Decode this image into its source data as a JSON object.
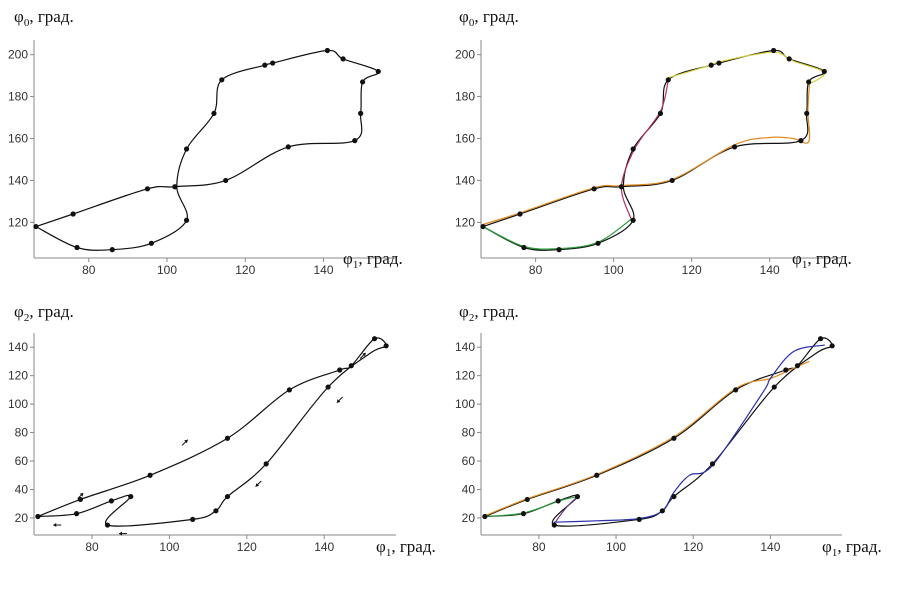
{
  "chart_data": [
    {
      "type": "line",
      "panel": "top-left",
      "ylabel": {
        "base": "φ",
        "sub": "0",
        "rest": ", град."
      },
      "xlabel": {
        "base": "φ",
        "sub": "1",
        "rest": ", град."
      },
      "xlim": [
        66,
        157
      ],
      "ylim": [
        103,
        207
      ],
      "xticks": [
        80,
        100,
        120,
        140
      ],
      "yticks": [
        120,
        140,
        160,
        180,
        200
      ],
      "series": [
        {
          "color": "#111111",
          "points": [
            [
              66.5,
              118
            ],
            [
              76,
              124
            ],
            [
              95,
              136
            ],
            [
              102,
              137
            ],
            [
              115,
              140
            ],
            [
              131,
              156
            ],
            [
              148,
              159
            ],
            [
              149.5,
              172
            ],
            [
              150,
              187
            ],
            [
              154,
              192
            ],
            [
              145,
              198
            ],
            [
              141,
              202
            ],
            [
              127,
              196
            ],
            [
              125,
              195
            ],
            [
              114,
              188
            ],
            [
              112,
              172
            ],
            [
              105,
              155
            ],
            [
              102.5,
              137
            ],
            [
              105,
              121
            ],
            [
              96,
              110
            ],
            [
              86,
              107
            ],
            [
              77,
              108
            ],
            [
              66.5,
              118
            ]
          ]
        }
      ],
      "markers": [
        [
          66.5,
          118
        ],
        [
          76,
          124
        ],
        [
          95,
          136
        ],
        [
          102,
          137
        ],
        [
          115,
          140
        ],
        [
          131,
          156
        ],
        [
          148,
          159
        ],
        [
          149.5,
          172
        ],
        [
          150,
          187
        ],
        [
          154,
          192
        ],
        [
          145,
          198
        ],
        [
          141,
          202
        ],
        [
          127,
          196
        ],
        [
          125,
          195
        ],
        [
          114,
          188
        ],
        [
          112,
          172
        ],
        [
          105,
          155
        ],
        [
          105,
          121
        ],
        [
          96,
          110
        ],
        [
          86,
          107
        ],
        [
          77,
          108
        ]
      ]
    },
    {
      "type": "line",
      "panel": "top-right",
      "ylabel": {
        "base": "φ",
        "sub": "0",
        "rest": ", град."
      },
      "xlabel": {
        "base": "φ",
        "sub": "1",
        "rest": ", град."
      },
      "xlim": [
        66,
        157
      ],
      "ylim": [
        103,
        207
      ],
      "xticks": [
        80,
        100,
        120,
        140
      ],
      "yticks": [
        120,
        140,
        160,
        180,
        200
      ],
      "series": [
        {
          "color": "#111111",
          "points": [
            [
              66.5,
              118
            ],
            [
              76,
              124
            ],
            [
              95,
              136
            ],
            [
              102,
              137
            ],
            [
              115,
              140
            ],
            [
              131,
              156
            ],
            [
              148,
              159
            ],
            [
              149.5,
              172
            ],
            [
              150,
              187
            ],
            [
              154,
              192
            ],
            [
              145,
              198
            ],
            [
              141,
              202
            ],
            [
              127,
              196
            ],
            [
              125,
              195
            ],
            [
              114,
              188
            ],
            [
              112,
              172
            ],
            [
              105,
              155
            ],
            [
              102.5,
              137
            ],
            [
              105,
              121
            ],
            [
              96,
              110
            ],
            [
              86,
              107
            ],
            [
              77,
              108
            ],
            [
              66.5,
              118
            ]
          ]
        },
        {
          "color": "#e08a1e",
          "points": [
            [
              66.5,
              119
            ],
            [
              76,
              124.5
            ],
            [
              95,
              136.5
            ],
            [
              102,
              137.5
            ],
            [
              115,
              140.5
            ],
            [
              131,
              157
            ],
            [
              140,
              160.5
            ],
            [
              146,
              160
            ],
            [
              150,
              158.5
            ],
            [
              149.8,
              173
            ],
            [
              150.2,
              186
            ]
          ]
        },
        {
          "color": "#d9cf3a",
          "points": [
            [
              150.2,
              186
            ],
            [
              154,
              191.5
            ],
            [
              146,
              197
            ],
            [
              142,
              201
            ],
            [
              136,
              200
            ],
            [
              127,
              196.5
            ],
            [
              124,
              194.5
            ],
            [
              114,
              189
            ]
          ]
        },
        {
          "color": "#b2315a",
          "points": [
            [
              114,
              188
            ],
            [
              112,
              173
            ],
            [
              105.5,
              155.5
            ],
            [
              102,
              137
            ],
            [
              104.5,
              121.5
            ]
          ]
        },
        {
          "color": "#2a9a3a",
          "points": [
            [
              104.5,
              121.5
            ],
            [
              96,
              110.5
            ],
            [
              86,
              107.5
            ],
            [
              77,
              108.5
            ],
            [
              67,
              117.5
            ]
          ]
        }
      ],
      "markers": [
        [
          66.5,
          118
        ],
        [
          76,
          124
        ],
        [
          95,
          136
        ],
        [
          102,
          137
        ],
        [
          115,
          140
        ],
        [
          131,
          156
        ],
        [
          148,
          159
        ],
        [
          149.5,
          172
        ],
        [
          150,
          187
        ],
        [
          154,
          192
        ],
        [
          145,
          198
        ],
        [
          141,
          202
        ],
        [
          127,
          196
        ],
        [
          125,
          195
        ],
        [
          114,
          188
        ],
        [
          112,
          172
        ],
        [
          105,
          155
        ],
        [
          105,
          121
        ],
        [
          96,
          110
        ],
        [
          86,
          107
        ],
        [
          77,
          108
        ]
      ]
    },
    {
      "type": "line",
      "panel": "bottom-left",
      "ylabel": {
        "base": "φ",
        "sub": "2",
        "rest": ", град."
      },
      "xlabel": {
        "base": "φ",
        "sub": "1",
        "rest": ", град."
      },
      "xlim": [
        65,
        157
      ],
      "ylim": [
        8,
        150
      ],
      "xticks": [
        80,
        100,
        120,
        140
      ],
      "yticks": [
        20,
        40,
        60,
        80,
        100,
        120,
        140
      ],
      "series": [
        {
          "color": "#111111",
          "points": [
            [
              66,
              21
            ],
            [
              77,
              33
            ],
            [
              95,
              50
            ],
            [
              115,
              76
            ],
            [
              131,
              110
            ],
            [
              144,
              124
            ],
            [
              147,
              127
            ],
            [
              153,
              146
            ],
            [
              156,
              141
            ],
            [
              152,
              136
            ],
            [
              141,
              112
            ],
            [
              125,
              58
            ],
            [
              115,
              35
            ],
            [
              112,
              25
            ],
            [
              106,
              19
            ],
            [
              84,
              15
            ],
            [
              90,
              35
            ],
            [
              85,
              32
            ],
            [
              76,
              23
            ],
            [
              66,
              21
            ]
          ]
        }
      ],
      "markers": [
        [
          66,
          21
        ],
        [
          77,
          33
        ],
        [
          95,
          50
        ],
        [
          115,
          76
        ],
        [
          131,
          110
        ],
        [
          144,
          124
        ],
        [
          147,
          127
        ],
        [
          153,
          146
        ],
        [
          156,
          141
        ],
        [
          141,
          112
        ],
        [
          125,
          58
        ],
        [
          115,
          35
        ],
        [
          112,
          25
        ],
        [
          106,
          19
        ],
        [
          84,
          15
        ],
        [
          90,
          35
        ],
        [
          85,
          32
        ],
        [
          76,
          23
        ]
      ],
      "arrows": [
        {
          "at": [
            77,
            35.5
          ],
          "dir": [
            1,
            1
          ]
        },
        {
          "at": [
            104,
            73
          ],
          "dir": [
            1,
            1
          ]
        },
        {
          "at": [
            150,
            134
          ],
          "dir": [
            1,
            1
          ]
        },
        {
          "at": [
            144,
            103
          ],
          "dir": [
            -1,
            -1
          ]
        },
        {
          "at": [
            123,
            44
          ],
          "dir": [
            -1,
            -1
          ]
        },
        {
          "at": [
            71,
            15
          ],
          "dir": [
            -1,
            0
          ]
        },
        {
          "at": [
            88,
            9
          ],
          "dir": [
            -1,
            0
          ]
        }
      ]
    },
    {
      "type": "line",
      "panel": "bottom-right",
      "ylabel": {
        "base": "φ",
        "sub": "2",
        "rest": ", град."
      },
      "xlabel": {
        "base": "φ",
        "sub": "1",
        "rest": ", град."
      },
      "xlim": [
        65,
        157
      ],
      "ylim": [
        8,
        150
      ],
      "xticks": [
        80,
        100,
        120,
        140
      ],
      "yticks": [
        20,
        40,
        60,
        80,
        100,
        120,
        140
      ],
      "series": [
        {
          "color": "#111111",
          "points": [
            [
              66,
              21
            ],
            [
              77,
              33
            ],
            [
              95,
              50
            ],
            [
              115,
              76
            ],
            [
              131,
              110
            ],
            [
              144,
              124
            ],
            [
              147,
              127
            ],
            [
              153,
              146
            ],
            [
              156,
              141
            ],
            [
              152,
              136
            ],
            [
              141,
              112
            ],
            [
              125,
              58
            ],
            [
              115,
              35
            ],
            [
              112,
              25
            ],
            [
              106,
              19
            ],
            [
              84,
              15
            ],
            [
              90,
              35
            ],
            [
              85,
              32
            ],
            [
              76,
              23
            ],
            [
              66,
              21
            ]
          ]
        },
        {
          "color": "#e08a1e",
          "points": [
            [
              66,
              21.5
            ],
            [
              77,
              33.5
            ],
            [
              95,
              50.5
            ],
            [
              115,
              77
            ],
            [
              131,
              111
            ],
            [
              140,
              118
            ],
            [
              145,
              124
            ],
            [
              150,
              130
            ]
          ]
        },
        {
          "color": "#2b2fa8",
          "points": [
            [
              154,
              141.5
            ],
            [
              146,
              137
            ],
            [
              140,
              118
            ],
            [
              138,
              108
            ],
            [
              125,
              57
            ],
            [
              119,
              50
            ],
            [
              115,
              38
            ],
            [
              112,
              25
            ],
            [
              106,
              19.5
            ],
            [
              95,
              18
            ],
            [
              84,
              17
            ]
          ]
        },
        {
          "color": "#6a3a8a",
          "points": [
            [
              84,
              16
            ],
            [
              87,
              27
            ],
            [
              90,
              35
            ]
          ]
        },
        {
          "color": "#2a9a3a",
          "points": [
            [
              90,
              35
            ],
            [
              86,
              32.5
            ],
            [
              76,
              23.5
            ],
            [
              66,
              21
            ]
          ]
        }
      ],
      "markers": [
        [
          66,
          21
        ],
        [
          77,
          33
        ],
        [
          95,
          50
        ],
        [
          115,
          76
        ],
        [
          131,
          110
        ],
        [
          144,
          124
        ],
        [
          147,
          127
        ],
        [
          153,
          146
        ],
        [
          156,
          141
        ],
        [
          141,
          112
        ],
        [
          125,
          58
        ],
        [
          115,
          35
        ],
        [
          112,
          25
        ],
        [
          106,
          19
        ],
        [
          84,
          15
        ],
        [
          90,
          35
        ],
        [
          85,
          32
        ],
        [
          76,
          23
        ]
      ]
    }
  ]
}
